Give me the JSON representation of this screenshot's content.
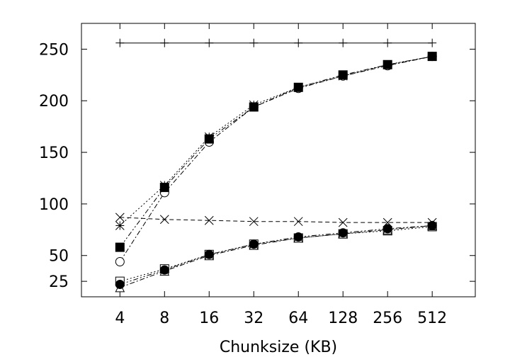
{
  "chart_data": {
    "type": "line",
    "title": "",
    "xlabel": "Chunksize (KB)",
    "ylabel": "",
    "x_scale": "log2",
    "x": [
      4,
      8,
      16,
      32,
      64,
      128,
      256,
      512
    ],
    "x_tick_labels": [
      "4",
      "8",
      "16",
      "32",
      "64",
      "128",
      "256",
      "512"
    ],
    "xlim": [
      2.2,
      1000
    ],
    "ylim": [
      10,
      275
    ],
    "y_ticks": [
      25,
      50,
      100,
      150,
      200,
      250
    ],
    "y_tick_labels": [
      "25",
      "50",
      "100",
      "150",
      "200",
      "250"
    ],
    "grid": false,
    "legend": "none",
    "series": [
      {
        "marker": "plus",
        "line": "solid",
        "color": "#000000",
        "values": [
          256,
          256,
          256,
          256,
          256,
          256,
          256,
          256
        ]
      },
      {
        "marker": "star",
        "line": "dotted",
        "color": "#000000",
        "values": [
          79,
          118,
          165,
          196,
          213,
          224,
          235,
          243
        ]
      },
      {
        "marker": "circle-open",
        "line": "dash-dot",
        "color": "#000000",
        "values": [
          44,
          111,
          160,
          194,
          212,
          224,
          234,
          243
        ]
      },
      {
        "marker": "square-filled",
        "line": "dash-dot-dot",
        "color": "#000000",
        "values": [
          58,
          116,
          163,
          194,
          213,
          225,
          235,
          243
        ]
      },
      {
        "marker": "x",
        "line": "dashed",
        "color": "#000000",
        "values": [
          87,
          85,
          84,
          83,
          83,
          82,
          82,
          82
        ]
      },
      {
        "marker": "square-open",
        "line": "dotted",
        "color": "#000000",
        "values": [
          25,
          37,
          51,
          61,
          67,
          71,
          74,
          78
        ]
      },
      {
        "marker": "triangle-open",
        "line": "dash-dot",
        "color": "#000000",
        "values": [
          19,
          35,
          50,
          60,
          67,
          71,
          75,
          79
        ]
      },
      {
        "marker": "circle-filled",
        "line": "dash-dot-dot",
        "color": "#000000",
        "values": [
          22,
          36,
          51,
          61,
          68,
          72,
          76,
          79
        ]
      }
    ]
  }
}
